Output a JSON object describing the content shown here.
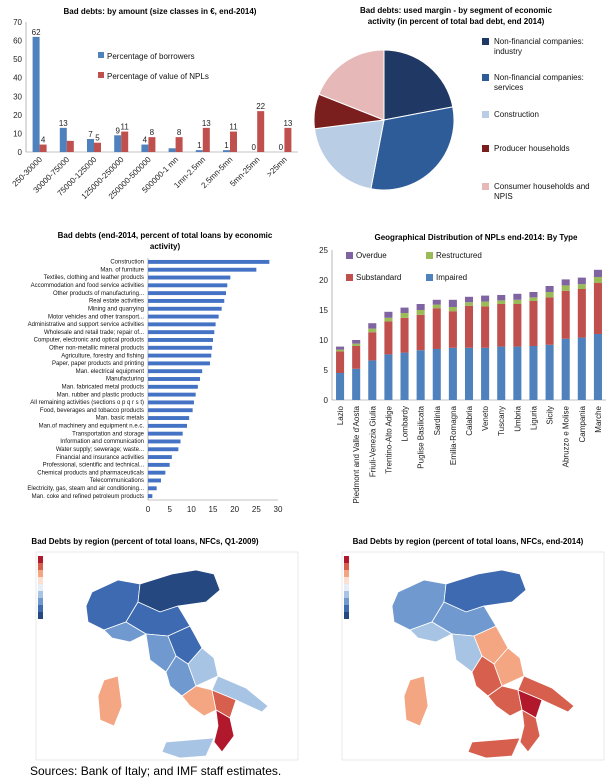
{
  "chart_data": [
    {
      "id": "amount",
      "type": "bar",
      "title": "Bad debts: by amount (size classes in €, end-2014)",
      "categories": [
        "250-30000",
        "30000-75000",
        "75000-125000",
        "125000-250000",
        "250000-500000",
        "500000-1 mn",
        "1mn-2.5mn",
        "2.5mn-5mn",
        "5mn-25mn",
        ">25mn"
      ],
      "series": [
        {
          "name": "Percentage of borrowers",
          "color": "#4F81BD",
          "values": [
            62,
            13,
            7,
            9,
            4,
            2,
            1,
            1,
            0,
            0
          ],
          "labels": [
            "62",
            "13",
            "7",
            "9",
            "4",
            "",
            "1",
            "1",
            "0",
            "0"
          ]
        },
        {
          "name": "Percentage of value of NPLs",
          "color": "#C0504D",
          "values": [
            4,
            6,
            5,
            11,
            8,
            8,
            13,
            11,
            22,
            13
          ],
          "labels": [
            "4",
            "",
            "5",
            "11",
            "8",
            "8",
            "13",
            "11",
            "22",
            "13"
          ]
        }
      ],
      "ylim": [
        0,
        70
      ],
      "yticks": [
        0,
        10,
        20,
        30,
        40,
        50,
        60,
        70
      ]
    },
    {
      "id": "segment",
      "type": "pie",
      "title": "Bad debts: used margin - by segment of economic activity  (in percent of total bad debt, end 2014)",
      "slices": [
        {
          "name": "Non-financial companies: industry",
          "value": 22,
          "color": "#1F3864"
        },
        {
          "name": "Non-financial companies: services",
          "value": 31,
          "color": "#2E5C99"
        },
        {
          "name": "Construction",
          "value": 20,
          "color": "#B9CDE5"
        },
        {
          "name": "Producer households",
          "value": 8,
          "color": "#7B1E1E"
        },
        {
          "name": "Consumer households and NPIS",
          "value": 19,
          "color": "#E6B9B8"
        }
      ]
    },
    {
      "id": "activity",
      "type": "bar",
      "orientation": "horizontal",
      "title": "Bad debts (end-2014, percent of total loans by economic activity)",
      "color": "#4472C4",
      "categories": [
        "Construction",
        "Man. of furniture",
        "Textiles, clothing and leather products",
        "Accommodation and food service activities",
        "Other products of manufacturing...",
        "Real estate activities",
        "Mining and quarrying",
        "Motor vehicles and other transport...",
        "Administrative and support service activities",
        "Wholesale and retail trade; repair of...",
        "Computer, electronic and optical products",
        "Other non-metallic mineral products",
        "Agriculture, forestry and fishing",
        "Paper, paper products and printing",
        "Man. electrical equipment",
        "Manufacturing",
        "Man. fabricated metal products",
        "Man. rubber and plastic products",
        "All remaining activities (sections o p q r s t)",
        "Food, beverages and tobacco products",
        "Man. basic metals",
        "Man.of machinery and equipment n.e.c.",
        "Transportation and storage",
        "Information and communication",
        "Water supply; sewerage; waste...",
        "Financial and insurance activities",
        "Professional, scientific and technical...",
        "Chemical products and pharmaceuticals",
        "Telecommunications",
        "Electricity, gas, steam and air conditioning...",
        "Man. coke and refined petroleum products"
      ],
      "values": [
        28,
        25,
        19,
        18.3,
        18,
        17.6,
        17,
        16.3,
        15.6,
        15.3,
        15,
        14.8,
        14.6,
        14.3,
        12.5,
        12,
        11.5,
        11,
        10.6,
        10.3,
        9.5,
        9,
        8,
        7.5,
        7,
        5.5,
        5,
        4,
        3,
        2,
        1
      ],
      "xlim": [
        0,
        30
      ],
      "xticks": [
        0,
        5,
        10,
        15,
        20,
        25,
        30
      ]
    },
    {
      "id": "geo",
      "type": "bar",
      "stacked": true,
      "title": "Geographical Distribution of NPLs end-2014: By Type",
      "categories": [
        "Lazio",
        "Piedmont and Valle d'Aosta",
        "Friuli-Venezia Giulia",
        "Trentino-Alto Adige",
        "Lombardy",
        "Puglise Basilicata",
        "Sardinia",
        "Emilia-Romagna",
        "Calabria",
        "Veneto",
        "Tuscany",
        "Umbria",
        "Liguria",
        "Sicily",
        "Abruzzo e Molise",
        "Campania",
        "Marche"
      ],
      "series": [
        {
          "name": "Impaired",
          "color": "#4F81BD",
          "values": [
            4.5,
            5.2,
            6.6,
            7.6,
            7.9,
            8.3,
            8.5,
            8.7,
            8.7,
            8.7,
            8.9,
            8.9,
            9.0,
            9.2,
            10.2,
            10.4,
            11.0
          ]
        },
        {
          "name": "Substandard",
          "color": "#C0504D",
          "values": [
            3.6,
            3.8,
            4.7,
            5.5,
            5.8,
            5.9,
            6.8,
            6.1,
            7.0,
            6.9,
            7.1,
            7.1,
            7.5,
            7.9,
            8.0,
            8.1,
            8.5
          ]
        },
        {
          "name": "Restructured",
          "color": "#9BBB59",
          "values": [
            0.3,
            0.4,
            0.6,
            0.6,
            0.8,
            0.8,
            0.6,
            0.7,
            0.6,
            0.8,
            0.6,
            0.7,
            0.6,
            0.9,
            0.9,
            0.8,
            1.0
          ]
        },
        {
          "name": "Overdue",
          "color": "#8064A2",
          "values": [
            0.5,
            0.6,
            0.9,
            1.0,
            0.9,
            1.0,
            0.8,
            1.2,
            0.9,
            1.0,
            0.9,
            1.0,
            0.9,
            1.0,
            1.0,
            1.1,
            1.2
          ]
        }
      ],
      "ylim": [
        0,
        25
      ],
      "yticks": [
        0,
        5,
        10,
        15,
        20,
        25
      ]
    }
  ],
  "maps": [
    {
      "id": "map2009",
      "title": "Bad Debts by region (percent of total loans, NFCs, Q1-2009)"
    },
    {
      "id": "map2014",
      "title": "Bad Debts by region (percent of total loans, NFCs, end-2014)"
    }
  ],
  "source": "Sources: Bank of Italy; and IMF staff estimates."
}
